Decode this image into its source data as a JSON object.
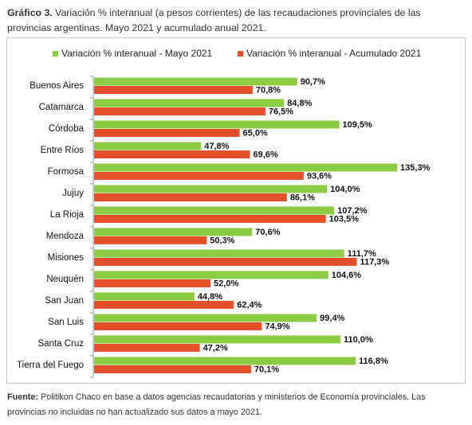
{
  "caption": {
    "prefix": "Gráfico 3.",
    "text": " Variación % interanual (a pesos corrientes) de las recaudaciones provinciales de las provincias argentinas. Mayo 2021 y acumulado anual 2021."
  },
  "source": {
    "prefix": "Fuente:",
    "text": " Politikon Chaco en base a datos agencias recaudatorias y ministerios de Economía provinciales. Las provincias no incluidas no han actualizado sus datos a mayo 2021."
  },
  "chart_data": {
    "type": "bar",
    "orientation": "horizontal",
    "categories": [
      "Buenos Aires",
      "Catamarca",
      "Córdoba",
      "Entre Ríos",
      "Formosa",
      "Jujuy",
      "La Rioja",
      "Mendoza",
      "Misiones",
      "Neuquén",
      "San Juan",
      "San Luis",
      "Santa Cruz",
      "Tierra del Fuego"
    ],
    "series": [
      {
        "name": "Variación % interanual - Mayo 2021",
        "color": "#8ccc45",
        "values": [
          90.7,
          84.8,
          109.5,
          47.8,
          135.3,
          104.0,
          107.2,
          70.6,
          111.7,
          104.6,
          44.8,
          99.4,
          110.0,
          116.8
        ],
        "labels": [
          "90,7%",
          "84,8%",
          "109,5%",
          "47,8%",
          "135,3%",
          "104,0%",
          "107,2%",
          "70,6%",
          "111,7%",
          "104,6%",
          "44,8%",
          "99,4%",
          "110,0%",
          "116,8%"
        ]
      },
      {
        "name": "Variación % interanual - Acumulado 2021",
        "color": "#e2502b",
        "values": [
          70.8,
          76.5,
          65.0,
          69.6,
          93.6,
          86.1,
          103.5,
          50.3,
          117.3,
          52.0,
          62.4,
          74.9,
          47.2,
          70.1
        ],
        "labels": [
          "70,8%",
          "76,5%",
          "65,0%",
          "69,6%",
          "93,6%",
          "86,1%",
          "103,5%",
          "50,3%",
          "117,3%",
          "52,0%",
          "62,4%",
          "74,9%",
          "47,2%",
          "70,1%"
        ]
      }
    ],
    "legend_position": "top",
    "grid": false,
    "xlim": [
      0,
      135.3
    ],
    "title": "",
    "xlabel": "",
    "ylabel": ""
  }
}
